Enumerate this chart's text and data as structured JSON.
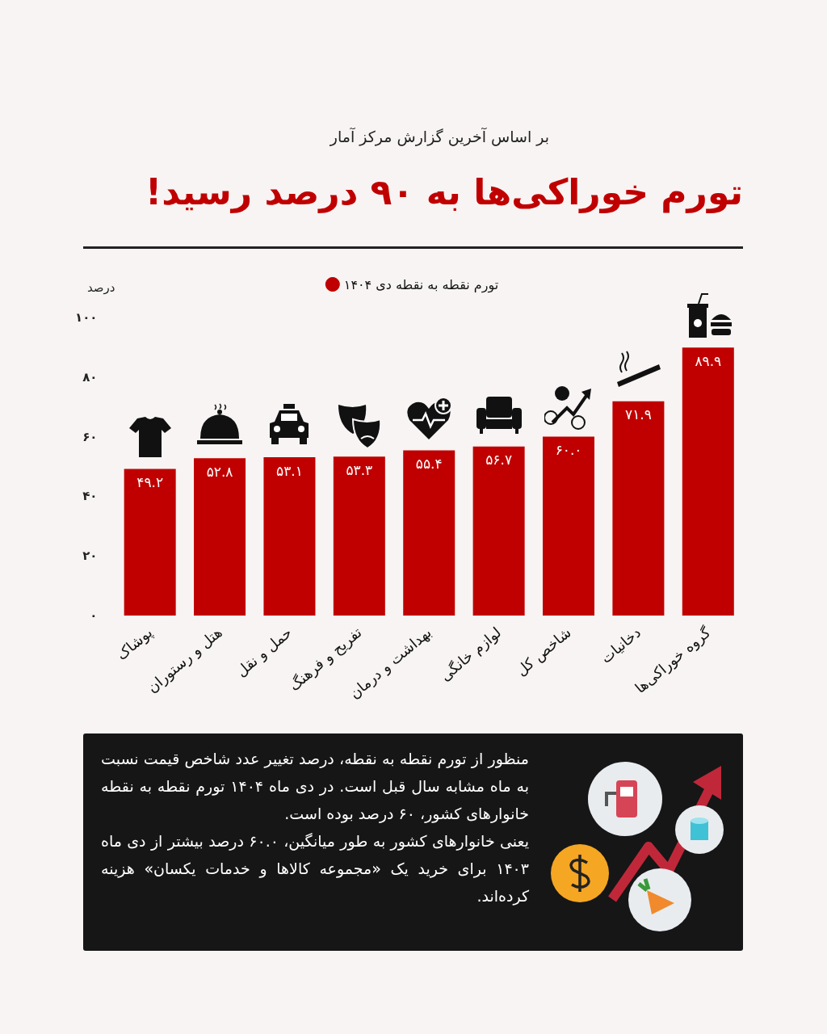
{
  "chart_data": {
    "type": "bar",
    "title": "تورم خوراکی‌ها به ۹۰ درصد رسید!",
    "subtitle": "بر اساس آخرین گزارش مرکز آمار",
    "ylabel": "درصد",
    "categories": [
      "پوشاک",
      "هتل و رستوران",
      "حمل و نقل",
      "تفریح و فرهنگ",
      "بهداشت و درمان",
      "لوازم خانگی",
      "شاخص کل",
      "دخانیات",
      "گروه خوراکی‌ها"
    ],
    "series": [
      {
        "name": "تورم نقطه به نقطه دی ۱۴۰۴",
        "color": "#c00000",
        "values": [
          49.2,
          52.8,
          53.1,
          53.3,
          55.4,
          56.7,
          60.0,
          71.9,
          89.9
        ],
        "value_labels": [
          "۴۹.۲",
          "۵۲.۸",
          "۵۳.۱",
          "۵۳.۳",
          "۵۵.۴",
          "۵۶.۷",
          "۶۰.۰",
          "۷۱.۹",
          "۸۹.۹"
        ]
      }
    ],
    "ylim": [
      0,
      100
    ],
    "yticks": [
      {
        "value": 0,
        "label": "۰"
      },
      {
        "value": 20,
        "label": "۲۰"
      },
      {
        "value": 40,
        "label": "۴۰"
      },
      {
        "value": 60,
        "label": "۶۰"
      },
      {
        "value": 80,
        "label": "۸۰"
      },
      {
        "value": 100,
        "label": "۱۰۰"
      }
    ],
    "grid": false,
    "legend": "top",
    "annotations": [
      "منظور از تورم نقطه به نقطه، درصد تغییر عدد شاخص قیمت نسبت به ماه مشابه سال قبل است. در دی ماه ۱۴۰۴ تورم نقطه به نقطه خانوارهای کشور، ۶۰ درصد بوده است.",
      "یعنی خانوارهای کشور به طور میانگین، ۶۰.۰ درصد بیشتر از دی ماه ۱۴۰۳ برای خرید یک «مجموعه کالاها و خدمات یکسان» هزینه کرده‌اند."
    ]
  }
}
